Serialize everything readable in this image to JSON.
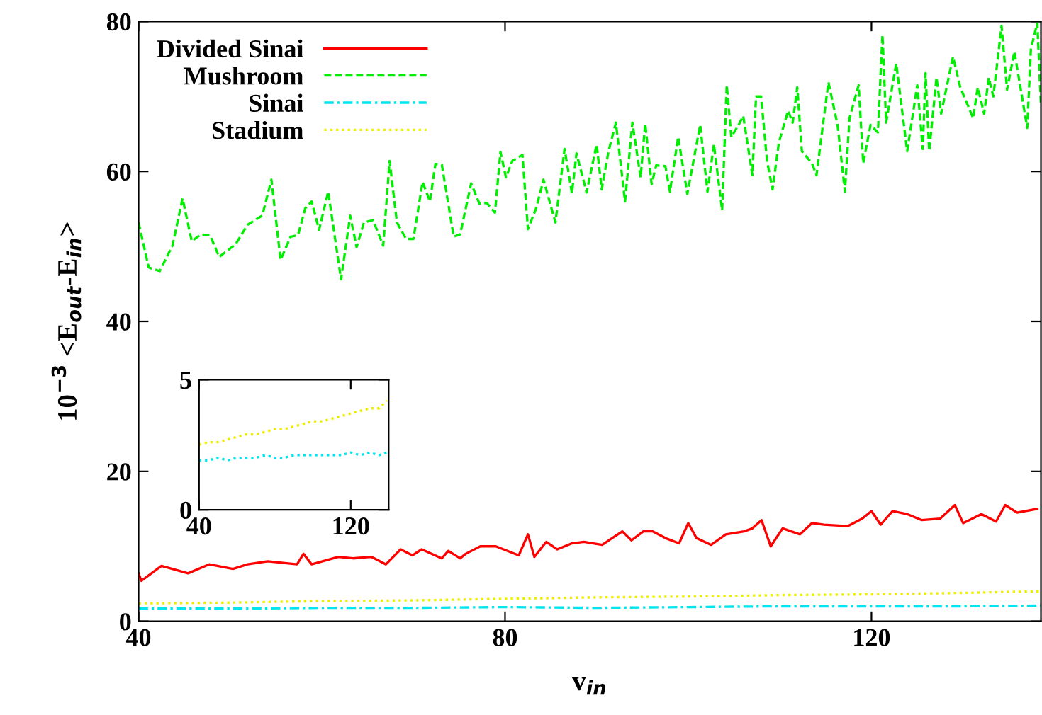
{
  "chart_data": [
    {
      "type": "line",
      "xlabel": "v$_{in}$",
      "ylabel": "10$^{−3}$ <E$_{out}$-E$_{in}$>",
      "xlim": [
        40,
        138.5
      ],
      "ylim": [
        0,
        80
      ],
      "xticks": [
        40,
        80,
        120
      ],
      "yticks": [
        0,
        20,
        40,
        60,
        80
      ],
      "grid": false,
      "legend": "top left",
      "series": [
        {
          "name": "Divided Sinai",
          "color": "#ff0000",
          "line_style": "solid",
          "x": [
            40,
            40.3,
            42.5,
            45.4,
            47.7,
            50.3,
            51.9,
            54.1,
            57.3,
            58,
            58.9,
            61.8,
            63.4,
            65.4,
            67,
            68.6,
            69.9,
            70.9,
            73.1,
            73.8,
            75.1,
            75.7,
            77.3,
            79,
            81.5,
            82.5,
            83.2,
            84.5,
            85.7,
            87.3,
            88.6,
            90.6,
            92.8,
            93.8,
            95.1,
            96.1,
            97.7,
            99,
            100,
            100.9,
            102.5,
            104.1,
            106.1,
            107,
            108,
            109,
            110.3,
            112.2,
            113.5,
            114.8,
            117.4,
            119,
            120,
            121,
            122.3,
            123.9,
            125.5,
            127.5,
            129.1,
            130,
            132,
            133.6,
            134.6,
            135.9,
            138.1
          ],
          "values": [
            6.4,
            5.4,
            7.4,
            6.4,
            7.6,
            7,
            7.6,
            8,
            7.6,
            9,
            7.6,
            8.6,
            8.4,
            8.6,
            7.6,
            9.6,
            8.8,
            9.6,
            8.4,
            9.4,
            8.4,
            9,
            10,
            10,
            8.8,
            11.6,
            8.6,
            10.6,
            9.6,
            10.4,
            10.6,
            10.2,
            12,
            10.8,
            12,
            12,
            11,
            10.4,
            13.1,
            11.1,
            10.2,
            11.6,
            12,
            12.4,
            13.5,
            10,
            12.4,
            11.6,
            13.1,
            12.9,
            12.7,
            13.7,
            14.7,
            12.9,
            14.7,
            14.3,
            13.5,
            13.7,
            15.5,
            13.1,
            14.3,
            13.3,
            15.5,
            14.5,
            15
          ]
        },
        {
          "name": "Mushroom",
          "color": "#00ee00",
          "line_style": "dashed",
          "x": [
            40,
            41.1,
            42.3,
            43.7,
            44.8,
            45.8,
            46.8,
            47.8,
            48.8,
            50.6,
            51.9,
            53.5,
            54.5,
            55.5,
            56.6,
            57.4,
            58.2,
            58.9,
            59.7,
            60.7,
            62.1,
            63.1,
            63.8,
            64.6,
            65.6,
            66.7,
            67.4,
            68.2,
            69.2,
            70,
            71,
            71.8,
            72.4,
            73.1,
            74.4,
            75.1,
            76.3,
            77.2,
            78,
            78.9,
            79.5,
            80.1,
            80.8,
            81.9,
            82.5,
            83.4,
            84.2,
            85.5,
            86.5,
            87.3,
            87.8,
            88.9,
            90,
            90.55,
            91.3,
            92.1,
            93.1,
            93.9,
            94.8,
            95.3,
            96,
            96.5,
            97.5,
            98,
            98.9,
            99.9,
            101.3,
            102.1,
            102.8,
            103.7,
            104.2,
            104.7,
            105.5,
            106,
            107,
            107.4,
            107.95,
            108.6,
            109.2,
            109.9,
            110.9,
            111.4,
            111.9,
            112.4,
            113.5,
            114,
            115.3,
            116.3,
            117.1,
            117.6,
            118.6,
            119.1,
            119.9,
            120.7,
            121.2,
            121.6,
            122.7,
            123.9,
            125,
            125.6,
            125.9,
            126.3,
            127.1,
            127.6,
            128.9,
            129.7,
            131.1,
            131.6,
            132.3,
            132.8,
            133.3,
            134.2,
            134.8,
            135.6,
            137,
            137.4,
            138.1,
            138.5
          ],
          "values": [
            53.2,
            47.2,
            46.7,
            50.1,
            56.4,
            50.7,
            51.6,
            51.5,
            48.6,
            50.3,
            52.9,
            54.1,
            58.9,
            48.2,
            51.3,
            51.5,
            55.1,
            56,
            52.2,
            57.3,
            45.6,
            54.1,
            49.9,
            53.2,
            53.5,
            50.1,
            61.4,
            53.2,
            51,
            51,
            58.6,
            56,
            61,
            60.9,
            51.3,
            51.6,
            58.4,
            55.7,
            55.8,
            54.5,
            62.6,
            59.2,
            61.4,
            62.2,
            52.3,
            55.1,
            58.9,
            53.2,
            63,
            57.1,
            62.4,
            57.2,
            63.6,
            57.6,
            62.7,
            66.5,
            56,
            66.5,
            59.2,
            66.4,
            58.3,
            60.8,
            60.7,
            57.3,
            64.6,
            57,
            66.2,
            57.3,
            63.6,
            54.8,
            71.5,
            64.6,
            66.2,
            67.4,
            59.5,
            70,
            70,
            61.4,
            57.6,
            63.9,
            68.1,
            66.5,
            71.2,
            62.7,
            61.1,
            59.5,
            71.9,
            66.2,
            57.3,
            67.1,
            71.5,
            61.1,
            66.2,
            65.2,
            78.2,
            66.5,
            74.4,
            62.7,
            71.5,
            63,
            73.1,
            62.7,
            72.5,
            67.7,
            75.3,
            71.2,
            67.1,
            71.2,
            67.7,
            72.5,
            70,
            79.4,
            70.9,
            76,
            65.8,
            76.3,
            79.8,
            68.7
          ]
        },
        {
          "name": "Sinai",
          "color": "#00e5ee",
          "line_style": "dashdot",
          "x": [
            40,
            50,
            60,
            70,
            80,
            90,
            100,
            110,
            120,
            130,
            138.5
          ],
          "values": [
            1.7,
            1.7,
            1.8,
            1.8,
            1.9,
            1.8,
            1.9,
            2,
            2,
            2,
            2.1
          ]
        },
        {
          "name": "Stadium",
          "color": "#eeee00",
          "line_style": "dotted",
          "x": [
            40,
            50,
            60,
            70,
            80,
            90,
            100,
            110,
            120,
            130,
            138.5
          ],
          "values": [
            2.4,
            2.5,
            2.7,
            2.8,
            3,
            3.2,
            3.3,
            3.5,
            3.6,
            3.8,
            4
          ]
        }
      ]
    },
    {
      "type": "line",
      "xlim": [
        40,
        140
      ],
      "ylim": [
        0,
        5
      ],
      "xticks": [
        40,
        120
      ],
      "yticks": [
        0,
        5
      ],
      "grid": false,
      "series": [
        {
          "color": "#00e5ee",
          "line_style": "dotted",
          "x": [
            40,
            45,
            50,
            55,
            60,
            65,
            70,
            75,
            80,
            85,
            90,
            95,
            100,
            105,
            110,
            115,
            120,
            125,
            130,
            135,
            139
          ],
          "values": [
            1.9,
            1.9,
            2,
            1.9,
            2,
            2,
            2,
            2.1,
            2,
            2,
            2.1,
            2.1,
            2.1,
            2.1,
            2.1,
            2.1,
            2.2,
            2.1,
            2.2,
            2.1,
            2.2
          ]
        },
        {
          "color": "#eeee00",
          "line_style": "dotted",
          "x": [
            40,
            45,
            50,
            55,
            60,
            65,
            70,
            75,
            80,
            85,
            90,
            95,
            100,
            105,
            110,
            115,
            120,
            125,
            130,
            135,
            139
          ],
          "values": [
            2.5,
            2.6,
            2.6,
            2.7,
            2.8,
            2.9,
            2.9,
            3,
            3.1,
            3.1,
            3.2,
            3.3,
            3.4,
            3.4,
            3.5,
            3.6,
            3.7,
            3.8,
            3.9,
            3.9,
            4.2
          ]
        }
      ]
    }
  ]
}
